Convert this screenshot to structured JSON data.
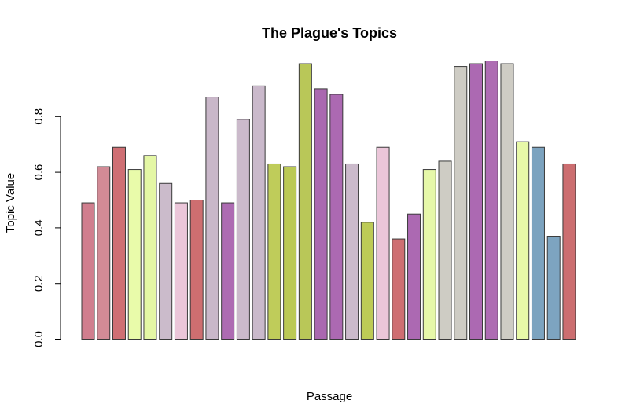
{
  "chart_data": {
    "type": "bar",
    "title": "The Plague's Topics",
    "xlabel": "Passage",
    "ylabel": "Topic Value",
    "ylim": [
      0,
      1.0
    ],
    "yticks": [
      "0.0",
      "0.2",
      "0.4",
      "0.6",
      "0.8"
    ],
    "grid": false,
    "legend": "none",
    "values": [
      0.49,
      0.62,
      0.69,
      0.61,
      0.66,
      0.56,
      0.49,
      0.5,
      0.87,
      0.49,
      0.79,
      0.91,
      0.63,
      0.62,
      0.99,
      0.9,
      0.88,
      0.63,
      0.42,
      0.69,
      0.36,
      0.45,
      0.61,
      0.64,
      0.98,
      0.99,
      1.0,
      0.99,
      0.71,
      0.69,
      0.37,
      0.63
    ],
    "colors": [
      "#D07E8E",
      "#D28B96",
      "#CF6F74",
      "#E9FBAA",
      "#E4F7A5",
      "#CBBBCB",
      "#EBC6D9",
      "#CE6E70",
      "#C9B7C9",
      "#AD6BB2",
      "#CBBACB",
      "#CAB9CB",
      "#BFCC5A",
      "#BBC955",
      "#B9C758",
      "#AA68B0",
      "#AC69B2",
      "#CBBACB",
      "#BDCB56",
      "#EBC6D9",
      "#CE6E72",
      "#AC69B2",
      "#E6F8A9",
      "#CECCC4",
      "#CECCC4",
      "#AC69B2",
      "#AE6CB3",
      "#CECCC4",
      "#E8F9A8",
      "#7CA3BF",
      "#7DA4C0",
      "#CC6E70"
    ]
  }
}
